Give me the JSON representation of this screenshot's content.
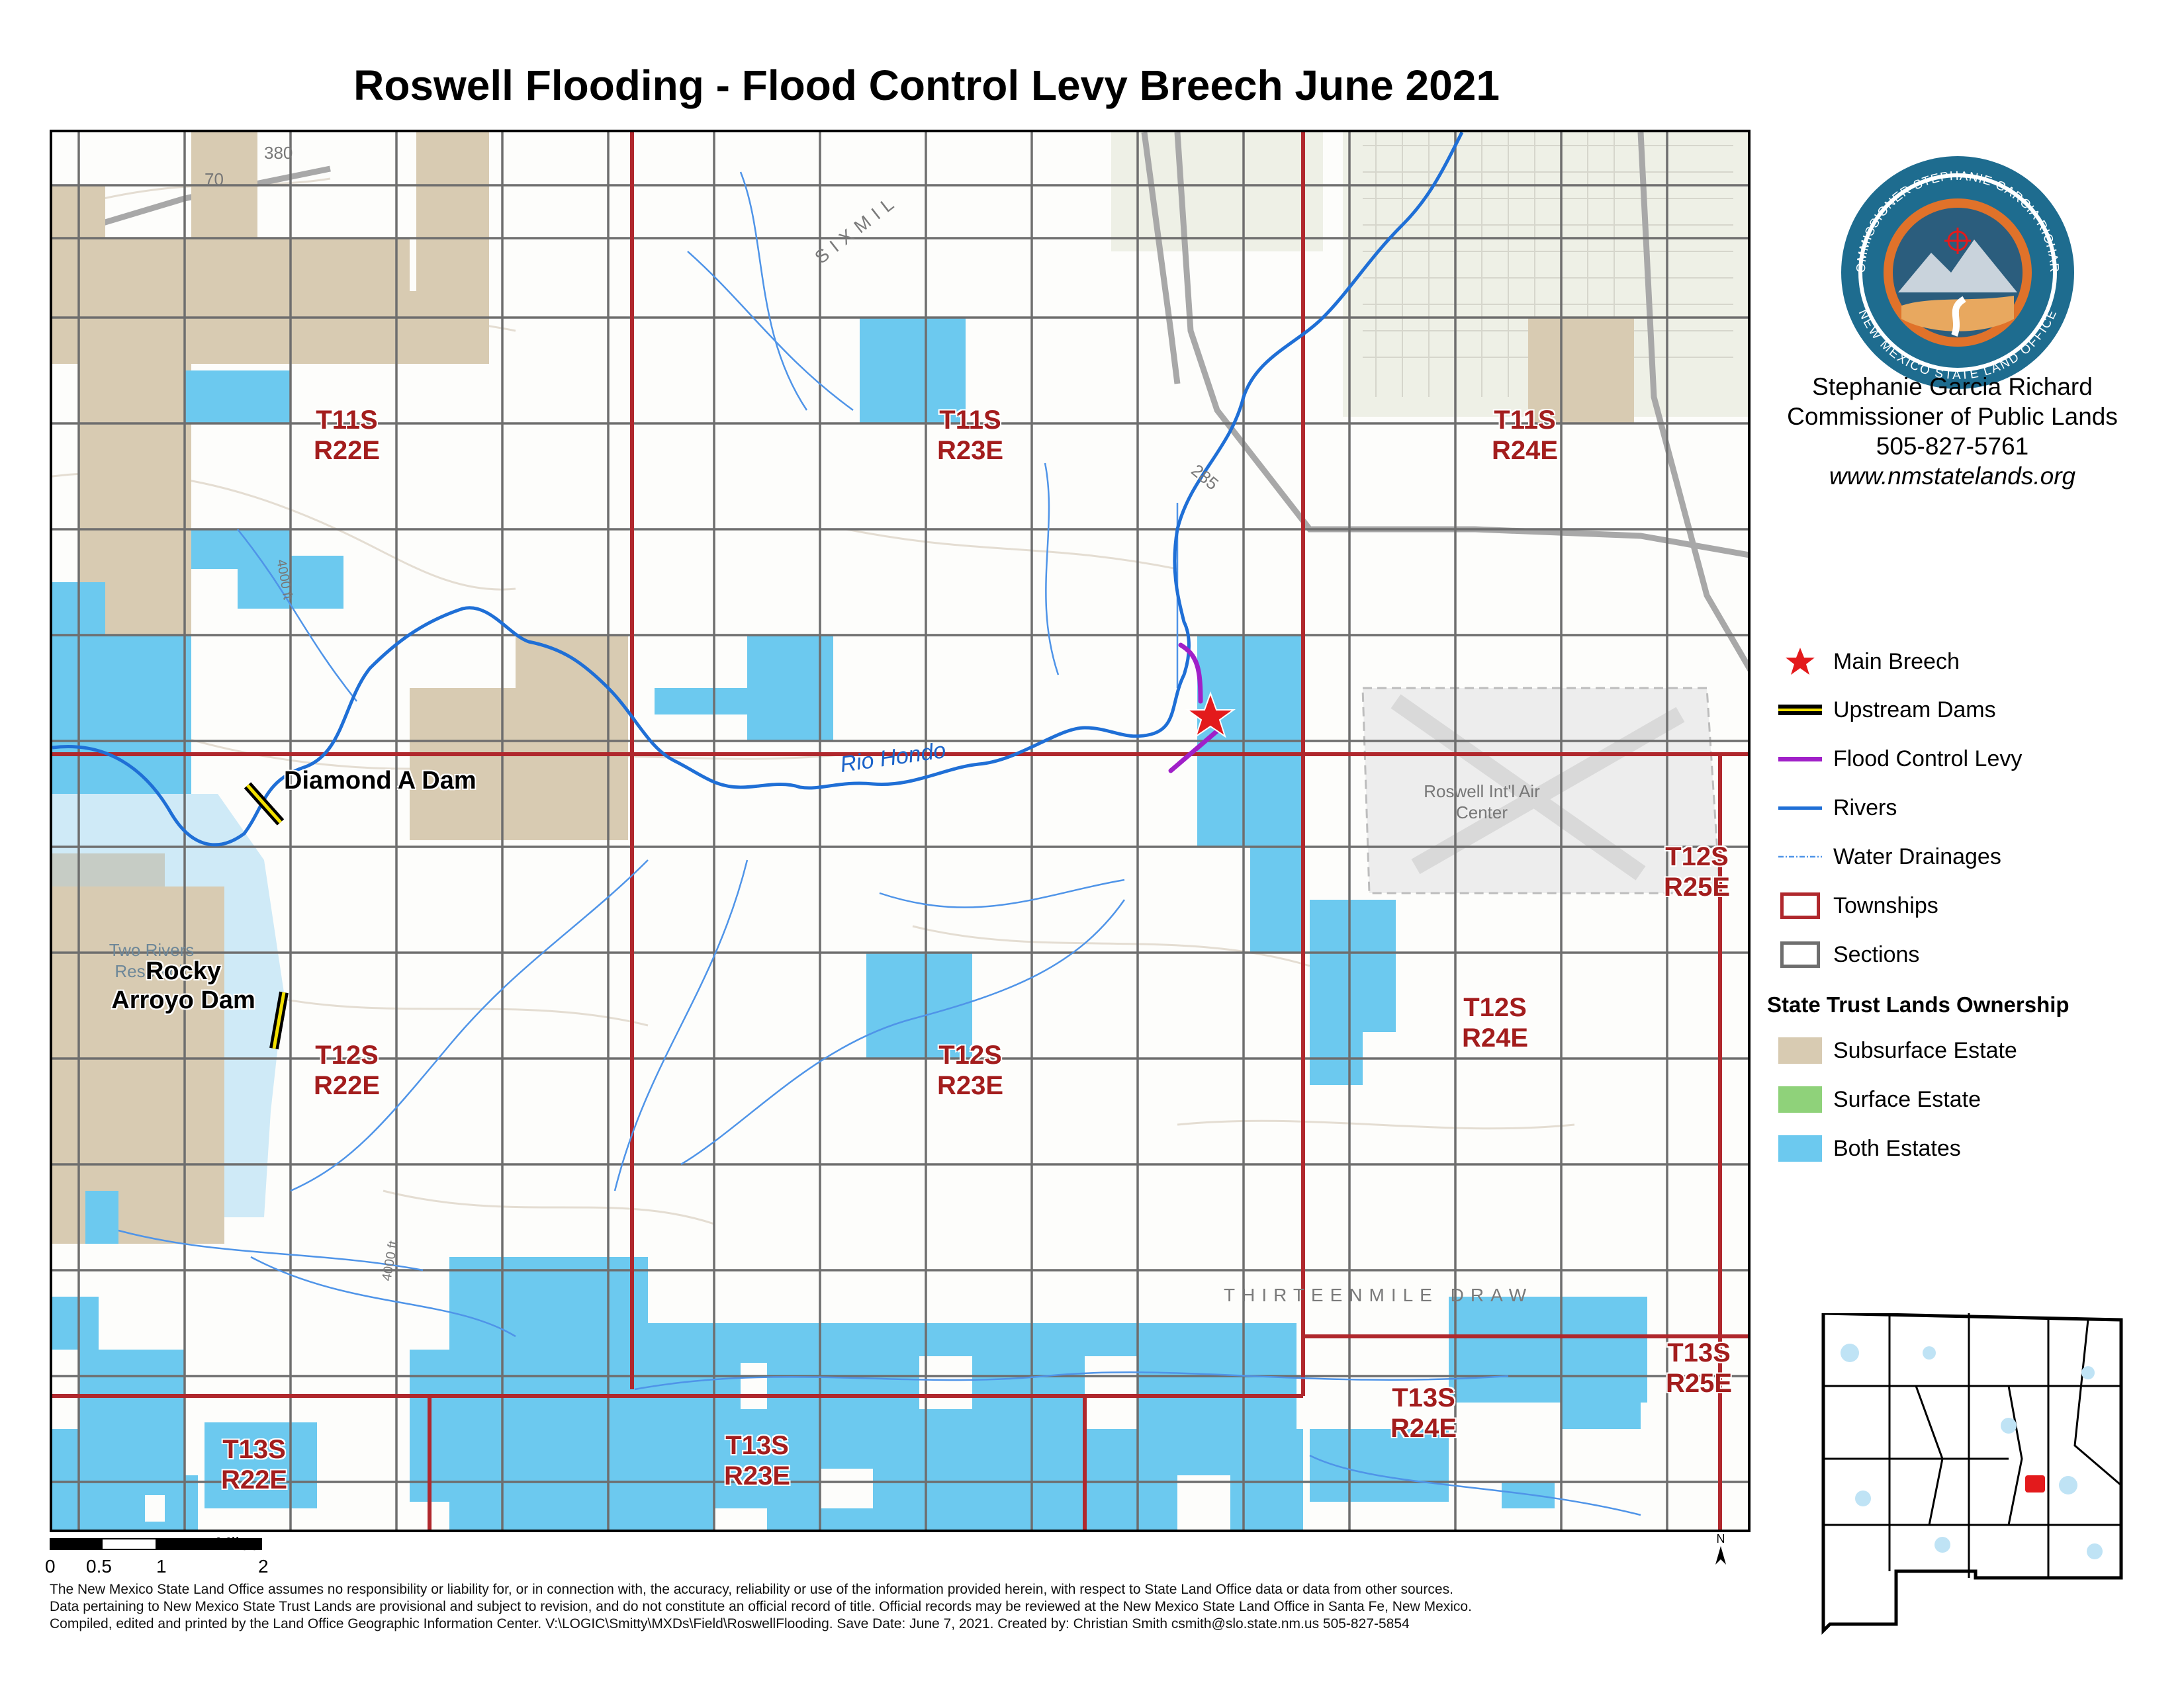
{
  "title": "Roswell Flooding - Flood Control Levy Breech    June 2021",
  "commissioner": {
    "name": "Stephanie Garcia Richard",
    "role": "Commissioner of Public Lands",
    "phone": "505-827-5761",
    "website": "www.nmstatelands.org"
  },
  "seal": {
    "text_top": "COMMISSIONER STEPHANIE GARCIA RICHARD",
    "text_bottom": "NEW MEXICO STATE LAND OFFICE",
    "colors": {
      "ring": "#1e6c8f",
      "inner": "#e0722a",
      "sky": "#2b5d7d"
    }
  },
  "legend": {
    "items": [
      {
        "label": "Main Breech",
        "icon": "red-star-icon",
        "color": "#e31a1c"
      },
      {
        "label": "Upstream Dams",
        "icon": "dam-line-icon",
        "color": "#f2e000"
      },
      {
        "label": "Flood Control Levy",
        "icon": "levy-line-icon",
        "color": "#a020c8"
      },
      {
        "label": "Rivers",
        "icon": "river-line-icon",
        "color": "#1f6fd6"
      },
      {
        "label": "Water Drainages",
        "icon": "drainage-line-icon",
        "color": "#4f94e8"
      },
      {
        "label": "Townships",
        "icon": "township-box-icon",
        "color": "#b0282d"
      },
      {
        "label": "Sections",
        "icon": "section-box-icon",
        "color": "#6e6e6e"
      }
    ],
    "ownership_heading": "State Trust Lands Ownership",
    "ownership": [
      {
        "label": "Subsurface Estate",
        "color": "#d8cbb2"
      },
      {
        "label": "Surface Estate",
        "color": "#8fd27a"
      },
      {
        "label": "Both Estates",
        "color": "#6cc9ef"
      }
    ]
  },
  "map": {
    "townships": [
      {
        "t": "T11S",
        "r": "R22E"
      },
      {
        "t": "T11S",
        "r": "R23E"
      },
      {
        "t": "T11S",
        "r": "R24E"
      },
      {
        "t": "T12S",
        "r": "R22E"
      },
      {
        "t": "T12S",
        "r": "R23E"
      },
      {
        "t": "T12S",
        "r": "R24E"
      },
      {
        "t": "T12S",
        "r": "R25E"
      },
      {
        "t": "T13S",
        "r": "R22E"
      },
      {
        "t": "T13S",
        "r": "R23E"
      },
      {
        "t": "T13S",
        "r": "R24E"
      },
      {
        "t": "T13S",
        "r": "R25E"
      }
    ],
    "dams": [
      {
        "name": "Diamond A Dam"
      },
      {
        "name": "Rocky Arroyo Dam"
      }
    ],
    "river_name": "Rio Hondo",
    "basemap_labels": {
      "draw": "THIRTEENMILE DRAW",
      "sixmile": "SIXMIL",
      "airport": "Roswell Int'l Air Center",
      "reservoir": "Two Rivers Reservoir",
      "hwy380": "380",
      "hwy70": "70",
      "hwy285": "285",
      "contour4000a": "4000 ft",
      "contour4000b": "4000 ft"
    }
  },
  "scale": {
    "units": "Miles",
    "ticks": [
      "0",
      "0.5",
      "1",
      "2"
    ]
  },
  "north_label": "N",
  "disclaimer": [
    "The New Mexico State Land Office assumes no responsibility or liability for, or in connection with, the accuracy, reliability or use of the information provided herein, with respect to State Land Office data or data from other sources.",
    "Data pertaining to New Mexico State Trust Lands are provisional and subject to revision, and do not constitute an official record of title. Official records may be reviewed at the New Mexico State Land Office in Santa Fe, New Mexico.",
    "Compiled, edited and printed by the Land Office Geographic Information Center. V:\\LOGIC\\Smitty\\MXDs\\Field\\RoswellFlooding.  Save Date:   June 7, 2021.  Created by: Christian Smith   csmith@slo.state.nm.us   505-827-5854"
  ]
}
